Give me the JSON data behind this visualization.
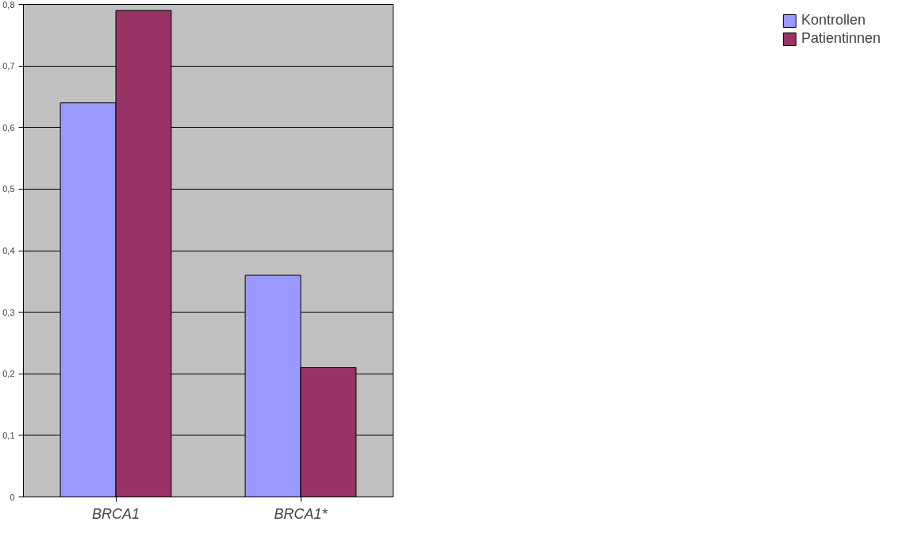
{
  "chart_data": {
    "type": "bar",
    "categories": [
      "BRCA1",
      "BRCA1*"
    ],
    "series": [
      {
        "name": "Kontrollen",
        "color": "#9999ff",
        "values": [
          0.64,
          0.36
        ]
      },
      {
        "name": "Patientinnen",
        "color": "#993366",
        "values": [
          0.79,
          0.21
        ]
      }
    ],
    "ylim": [
      0,
      0.8
    ],
    "yticks": [
      0,
      {
        "value": 0.1,
        "label": "0,1"
      },
      {
        "value": 0.2,
        "label": "0,2"
      },
      {
        "value": 0.3,
        "label": "0,3"
      },
      {
        "value": 0.4,
        "label": "0,4"
      },
      {
        "value": 0.5,
        "label": "0,5"
      },
      {
        "value": 0.6,
        "label": "0,6"
      },
      {
        "value": 0.7,
        "label": "0,7"
      },
      {
        "value": 0.8,
        "label": "0,8"
      }
    ],
    "grid": "y",
    "legend": "right"
  }
}
